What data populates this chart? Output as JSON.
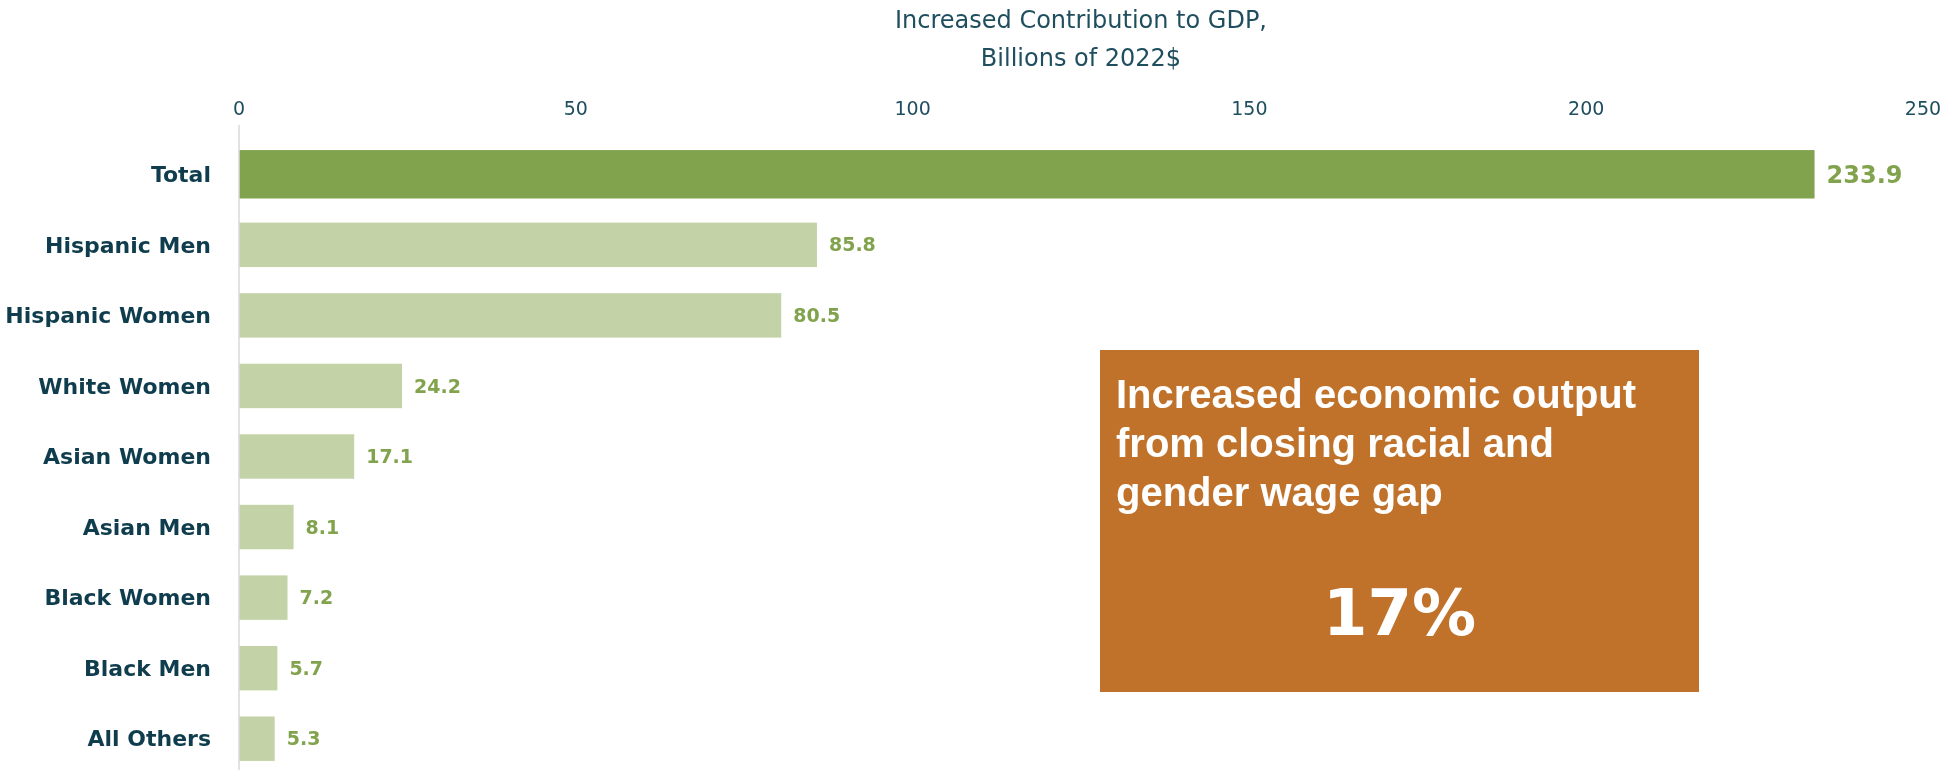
{
  "chart_data": {
    "type": "bar",
    "orientation": "horizontal",
    "xlabel": "Increased Contribution to GDP, Billions of 2022$",
    "categories": [
      "Total",
      "Hispanic Men",
      "Hispanic Women",
      "White Women",
      "Asian Women",
      "Asian Men",
      "Black Women",
      "Black Men",
      "All Others"
    ],
    "values": [
      233.9,
      85.8,
      80.5,
      24.2,
      17.1,
      8.1,
      7.2,
      5.7,
      5.3
    ],
    "colors": [
      "#82a34e",
      "#c3d3a7",
      "#c3d3a7",
      "#c3d3a7",
      "#c3d3a7",
      "#c3d3a7",
      "#c3d3a7",
      "#c3d3a7",
      "#c3d3a7"
    ],
    "xlim": [
      0,
      250
    ],
    "xticks": [
      0,
      50,
      100,
      150,
      200,
      250
    ],
    "data_labels": true,
    "grid": false,
    "annotations": [
      "Increased economic output from closing racial and gender wage gap",
      "17%"
    ]
  }
}
